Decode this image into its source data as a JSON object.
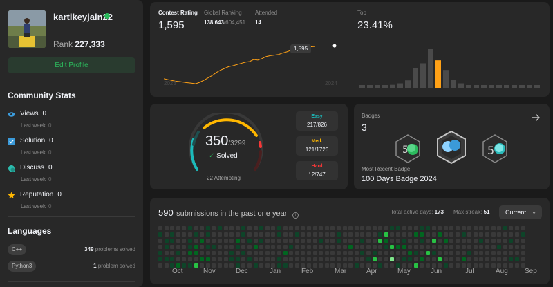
{
  "profile": {
    "username": "kartikeyjain22",
    "rank_label": "Rank",
    "rank_value": "227,333",
    "edit_label": "Edit Profile"
  },
  "community": {
    "title": "Community Stats",
    "items": [
      {
        "label": "Views",
        "value": "0",
        "sub": "Last week",
        "sub_value": "0",
        "icon": "eye-icon",
        "color": "#3b9ad9"
      },
      {
        "label": "Solution",
        "value": "0",
        "sub": "Last week",
        "sub_value": "0",
        "icon": "checkbox-icon",
        "color": "#3b9ad9"
      },
      {
        "label": "Discuss",
        "value": "0",
        "sub": "Last week",
        "sub_value": "0",
        "icon": "discuss-icon",
        "color": "#2cbbad"
      },
      {
        "label": "Reputation",
        "value": "0",
        "sub": "Last week",
        "sub_value": "0",
        "icon": "star-icon",
        "color": "#ffb700"
      }
    ]
  },
  "languages": {
    "title": "Languages",
    "items": [
      {
        "name": "C++",
        "count": "349",
        "suffix": "problems solved"
      },
      {
        "name": "Python3",
        "count": "1",
        "suffix": "problem solved"
      }
    ]
  },
  "contest": {
    "rating_label": "Contest Rating",
    "rating": "1,595",
    "global_label": "Global Ranking",
    "global_rank": "138,643",
    "global_total": "/604,451",
    "attended_label": "Attended",
    "attended": "14",
    "tooltip": "1,595",
    "year_start": "2023",
    "year_end": "2024",
    "top_label": "Top",
    "top_value": "23.41%",
    "line_points": [
      [
        0,
        1486
      ],
      [
        8,
        1482
      ],
      [
        16,
        1478
      ],
      [
        24,
        1476
      ],
      [
        32,
        1473
      ],
      [
        40,
        1471
      ],
      [
        46,
        1469
      ],
      [
        52,
        1474
      ],
      [
        58,
        1481
      ],
      [
        64,
        1489
      ],
      [
        70,
        1497
      ],
      [
        76,
        1507
      ],
      [
        82,
        1515
      ],
      [
        88,
        1521
      ],
      [
        94,
        1527
      ],
      [
        100,
        1530
      ],
      [
        106,
        1534
      ],
      [
        112,
        1538
      ],
      [
        118,
        1542
      ],
      [
        124,
        1544
      ],
      [
        130,
        1551
      ],
      [
        136,
        1549
      ],
      [
        142,
        1554
      ],
      [
        148,
        1561
      ],
      [
        154,
        1564
      ],
      [
        160,
        1566
      ],
      [
        166,
        1568
      ],
      [
        172,
        1573
      ],
      [
        178,
        1577
      ],
      [
        184,
        1582
      ],
      [
        190,
        1588
      ],
      [
        196,
        1590
      ],
      [
        202,
        1591
      ],
      [
        207,
        1592
      ],
      [
        212,
        1594
      ],
      [
        218,
        1595
      ]
    ],
    "distribution": [
      2,
      2,
      2,
      3,
      4,
      6,
      10,
      26,
      33,
      52,
      37,
      24,
      11,
      6,
      3,
      3,
      2,
      2,
      2,
      2,
      2,
      2,
      2,
      2
    ],
    "highlight_index": 10
  },
  "solved": {
    "count": "350",
    "total": "/3299",
    "label": "Solved",
    "attempting": "22 Attempting",
    "difficulty": [
      {
        "name": "Easy",
        "value": "217/826",
        "color": "#1cbaba"
      },
      {
        "name": "Med.",
        "value": "121/1726",
        "color": "#ffb700"
      },
      {
        "name": "Hard",
        "value": "12/747",
        "color": "#f63737"
      }
    ]
  },
  "badges": {
    "label": "Badges",
    "count": "3",
    "recent_label": "Most Recent Badge",
    "recent_name": "100 Days Badge 2024"
  },
  "calendar": {
    "count": "590",
    "text": "submissions in the past one year",
    "active_label": "Total active days:",
    "active_value": "173",
    "streak_label": "Max streak:",
    "streak_value": "51",
    "select_value": "Current",
    "months": [
      "Oct",
      "Nov",
      "Dec",
      "Jan",
      "Feb",
      "Mar",
      "Apr",
      "May",
      "Jun",
      "Jul",
      "Aug",
      "Sep"
    ],
    "levels": [
      "0100110",
      "0011010",
      "0110011",
      "0000102",
      "0000001",
      "1011201",
      "0102203",
      "0020020",
      "1101020",
      "0001000",
      "1000000",
      "0000000",
      "0000110",
      "0021011",
      "1100100",
      "0010010",
      "0002001",
      "1010000",
      "0000000",
      "0000000",
      "1100011",
      "0000201",
      "0001000",
      "0100000",
      "0000000",
      "0000000",
      "0000000",
      "0010000",
      "0000000",
      "0000000",
      "0110000",
      "0000000",
      "0002000",
      "0000001",
      "0010100",
      "0000010",
      "0000130",
      "0130001",
      "0321000",
      "1003040",
      "1002001",
      "0012010",
      "0000210",
      "0200103",
      "1210020",
      "1000300",
      "0030100",
      "0200030",
      "0020001",
      "0000000",
      "0000000",
      "0100020",
      "0000100",
      "0000000",
      "0010000",
      "0000000",
      "0000000",
      "0001000",
      "1000000",
      "0010010",
      "0000010",
      "0100000"
    ],
    "colors": [
      "#393939",
      "#0e4429",
      "#016620",
      "#28c244",
      "#7ee68a"
    ]
  }
}
